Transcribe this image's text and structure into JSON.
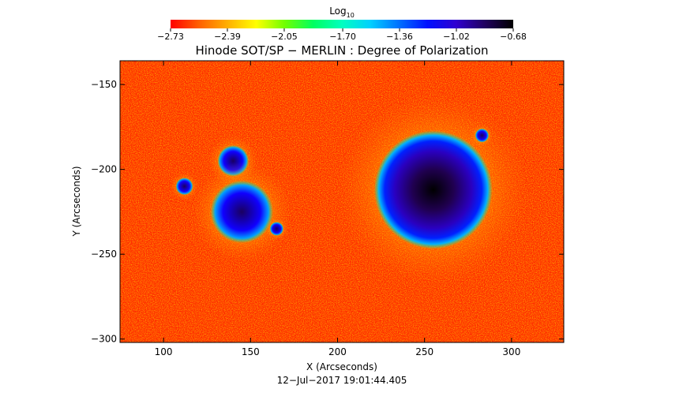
{
  "chart_data": {
    "type": "heatmap",
    "title": "Hinode SOT/SP − MERLIN : Degree of Polarization",
    "xlabel": "X (Arcseconds)",
    "ylabel": "Y (Arcseconds)",
    "timestamp": "12−Jul−2017 19:01:44.405",
    "xlim": [
      75,
      330
    ],
    "ylim": [
      -302,
      -136
    ],
    "xticks": [
      100,
      150,
      200,
      250,
      300
    ],
    "yticks": [
      -150,
      -200,
      -250,
      -300
    ],
    "xtick_labels": [
      "100",
      "150",
      "200",
      "250",
      "300"
    ],
    "ytick_labels": [
      "−150",
      "−200",
      "−250",
      "−300"
    ],
    "colorbar": {
      "label_main": "Log",
      "label_sub": "10",
      "min": -2.73,
      "max": -0.68,
      "ticks": [
        -2.73,
        -2.39,
        -2.05,
        -1.7,
        -1.36,
        -1.02,
        -0.68
      ],
      "tick_labels": [
        "−2.73",
        "−2.39",
        "−2.05",
        "−1.70",
        "−1.36",
        "−1.02",
        "−0.68"
      ],
      "colors": [
        "#ff0000",
        "#ff6000",
        "#ffb000",
        "#ffff00",
        "#70ff00",
        "#00ff60",
        "#00ffc0",
        "#00d0ff",
        "#0070ff",
        "#0010ff",
        "#3000d0",
        "#200060",
        "#000000"
      ]
    },
    "features": [
      {
        "x": 255,
        "y": -212,
        "r": 34,
        "value": -0.75
      },
      {
        "x": 140,
        "y": -195,
        "r": 9,
        "value": -0.95
      },
      {
        "x": 112,
        "y": -210,
        "r": 5,
        "value": -1.0
      },
      {
        "x": 145,
        "y": -225,
        "r": 18,
        "value": -1.2
      },
      {
        "x": 283,
        "y": -180,
        "r": 4,
        "value": -1.0
      },
      {
        "x": 165,
        "y": -235,
        "r": 4,
        "value": -1.0
      }
    ]
  }
}
